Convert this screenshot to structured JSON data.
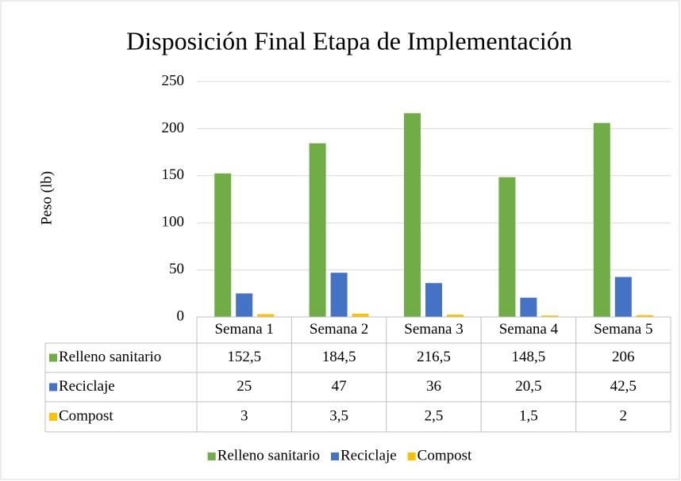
{
  "chart_data": {
    "type": "bar",
    "title": "Disposición Final Etapa de Implementación",
    "y_label": "Peso (lb)",
    "categories": [
      "Semana 1",
      "Semana 2",
      "Semana 3",
      "Semana 4",
      "Semana 5"
    ],
    "series": [
      {
        "name": "Relleno sanitario",
        "color": "#70ad47",
        "values": [
          152.5,
          184.5,
          216.5,
          148.5,
          206
        ],
        "value_labels": [
          "152,5",
          "184,5",
          "216,5",
          "148,5",
          "206"
        ]
      },
      {
        "name": "Reciclaje",
        "color": "#4472c4",
        "values": [
          25,
          47,
          36,
          20.5,
          42.5
        ],
        "value_labels": [
          "25",
          "47",
          "36",
          "20,5",
          "42,5"
        ]
      },
      {
        "name": "Compost",
        "color": "#ffc000",
        "values": [
          3,
          3.5,
          2.5,
          1.5,
          2
        ],
        "value_labels": [
          "3",
          "3,5",
          "2,5",
          "1,5",
          "2"
        ]
      }
    ],
    "ylim": [
      0,
      250
    ],
    "yticks": [
      0,
      50,
      100,
      150,
      200,
      250
    ],
    "grid": true,
    "legend": "bottom"
  }
}
